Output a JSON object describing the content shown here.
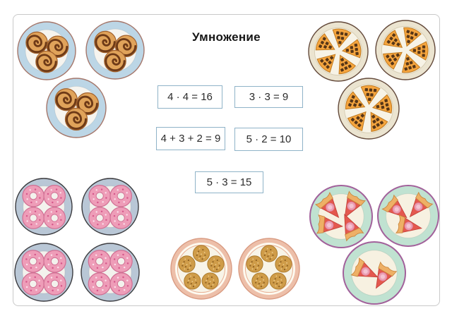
{
  "title": "Умножение",
  "equations": [
    {
      "id": "eq1",
      "text": "4 · 4 = 16"
    },
    {
      "id": "eq2",
      "text": "3 · 3 = 9"
    },
    {
      "id": "eq3",
      "text": "4 + 3 + 2 = 9"
    },
    {
      "id": "eq4",
      "text": "5 · 2 = 10"
    },
    {
      "id": "eq5",
      "text": "5 · 3 = 15"
    }
  ],
  "groups": [
    {
      "id": "cinnamon-rolls",
      "food": "cinnamon-roll",
      "plate_style": "blue",
      "plate_counts": [
        3,
        3,
        3
      ],
      "total": 9
    },
    {
      "id": "waffles",
      "food": "waffle-slice",
      "plate_style": "cream",
      "plate_counts": [
        5,
        5,
        5
      ],
      "total": 15
    },
    {
      "id": "donuts",
      "food": "pink-donut",
      "plate_style": "bluegray",
      "plate_counts": [
        4,
        4,
        4,
        4
      ],
      "total": 16
    },
    {
      "id": "cookies",
      "food": "cookie",
      "plate_style": "salmon",
      "plate_counts": [
        5,
        5
      ],
      "total": 10
    },
    {
      "id": "pies",
      "food": "pie-slice",
      "plate_style": "mint",
      "plate_counts": [
        4,
        3,
        2
      ],
      "total": 9
    }
  ],
  "colors": {
    "equation_border": "#8fb3c8",
    "slide_border": "#c9c9c9",
    "plates": {
      "blue": {
        "rim": "#bcd6e6",
        "inner": "#f6f4ef",
        "edge": "#a5776b"
      },
      "cream": {
        "rim": "#ebe4d0",
        "inner": "#f7f3e6",
        "edge": "#63493a"
      },
      "bluegray": {
        "rim": "#b9c7d6",
        "inner": "#f3f2ed",
        "edge": "#3c3c40"
      },
      "salmon": {
        "rim": "#edbfa9",
        "inner": "#f8f4e8",
        "edge": "#d99b82"
      },
      "mint": {
        "rim": "#c0e2d1",
        "inner": "#f7f1e1",
        "edge": "#a2619b"
      }
    },
    "foods": {
      "cinnamon": {
        "bun": "#e0a35a",
        "swirl": "#6e3a17",
        "edge": "#a3632f"
      },
      "waffle": {
        "fill": "#f5a53e",
        "grid": "#573617",
        "edge": "#bf7a20"
      },
      "donut": {
        "glaze": "#ee9db8",
        "edge": "#d06f93",
        "sprinkle": "#fbe0ea",
        "sprinkle2": "#d4578a"
      },
      "cookie": {
        "fill": "#cf9c49",
        "edge": "#aa7a2c",
        "speckle": "#8d6022",
        "light": "#ecca8a"
      },
      "pie": {
        "filling": "#e4584e",
        "crust": "#eeb066",
        "crust_edge": "#c8853b",
        "berry": "#eb9fb4",
        "berry_light": "#f4c3d2",
        "edge": "#c23f38"
      }
    }
  }
}
